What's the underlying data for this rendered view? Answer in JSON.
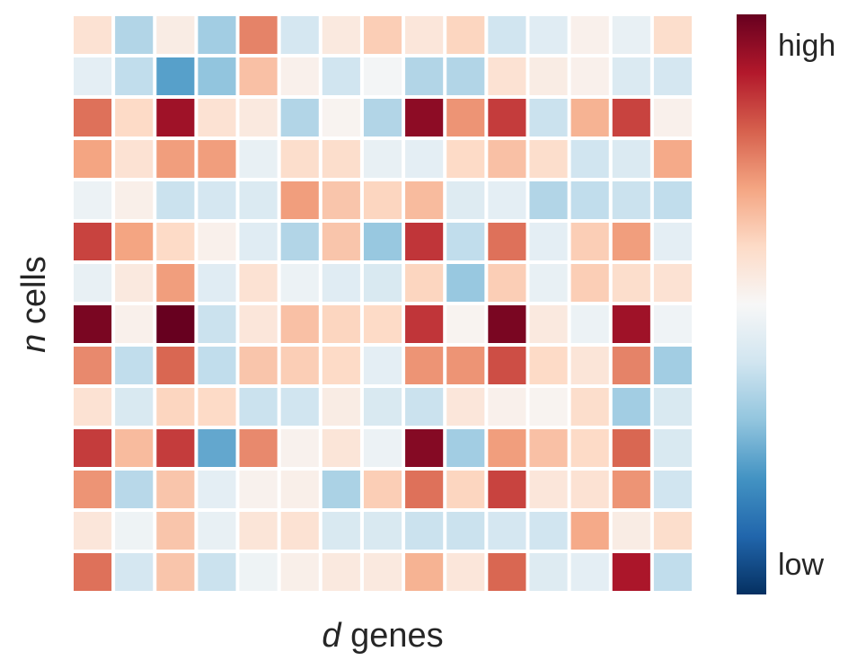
{
  "chart_data": {
    "type": "heatmap",
    "xlabel": {
      "italic": "d",
      "text": " genes"
    },
    "ylabel": {
      "italic": "n",
      "text": " cells"
    },
    "rows": 14,
    "cols": 15,
    "value_range": [
      -1,
      1
    ],
    "colorbar": {
      "high_label": "high",
      "low_label": "low"
    },
    "colormap": [
      "#053061",
      "#2166ac",
      "#4393c3",
      "#92c5de",
      "#d1e5f0",
      "#f7f7f7",
      "#fddbc7",
      "#f4a582",
      "#d6604d",
      "#b2182b",
      "#67001f"
    ],
    "grid": false,
    "values": [
      [
        0.15,
        -0.3,
        0.08,
        -0.35,
        0.5,
        -0.18,
        0.1,
        0.25,
        0.12,
        0.22,
        -0.2,
        -0.12,
        0.05,
        -0.08,
        0.18
      ],
      [
        -0.1,
        -0.25,
        -0.55,
        -0.4,
        0.3,
        0.05,
        -0.2,
        -0.02,
        -0.3,
        -0.3,
        0.15,
        0.08,
        0.05,
        -0.15,
        -0.18
      ],
      [
        0.55,
        0.2,
        0.85,
        0.15,
        0.1,
        -0.3,
        0.03,
        -0.3,
        0.9,
        0.45,
        0.7,
        -0.22,
        0.35,
        0.68,
        0.05
      ],
      [
        0.4,
        0.15,
        0.42,
        0.42,
        -0.08,
        0.18,
        0.18,
        -0.08,
        -0.1,
        0.2,
        0.3,
        0.18,
        -0.2,
        -0.15,
        0.38
      ],
      [
        -0.06,
        0.06,
        -0.22,
        -0.18,
        -0.15,
        0.42,
        0.28,
        0.22,
        0.32,
        -0.13,
        -0.1,
        -0.3,
        -0.25,
        -0.22,
        -0.25
      ],
      [
        0.68,
        0.4,
        0.2,
        0.05,
        -0.12,
        -0.3,
        0.28,
        -0.38,
        0.72,
        -0.25,
        0.55,
        -0.1,
        0.25,
        0.42,
        -0.1
      ],
      [
        -0.08,
        0.1,
        0.42,
        -0.12,
        0.15,
        -0.06,
        -0.12,
        -0.16,
        0.22,
        -0.38,
        0.25,
        -0.08,
        0.25,
        0.18,
        0.15
      ],
      [
        0.95,
        0.05,
        1.0,
        -0.22,
        0.12,
        0.3,
        0.22,
        0.2,
        0.72,
        0.03,
        0.95,
        0.1,
        -0.06,
        0.85,
        -0.04
      ],
      [
        0.48,
        -0.25,
        0.58,
        -0.25,
        0.28,
        0.25,
        0.2,
        -0.1,
        0.45,
        0.45,
        0.65,
        0.2,
        0.13,
        0.5,
        -0.35
      ],
      [
        0.15,
        -0.16,
        0.22,
        0.2,
        -0.22,
        -0.2,
        0.08,
        -0.16,
        -0.22,
        0.12,
        0.05,
        0.03,
        0.18,
        -0.35,
        -0.16
      ],
      [
        0.7,
        0.32,
        0.7,
        -0.52,
        0.48,
        0.04,
        0.13,
        -0.06,
        0.92,
        -0.35,
        0.42,
        0.3,
        0.2,
        0.58,
        -0.16
      ],
      [
        0.45,
        -0.28,
        0.28,
        -0.1,
        0.04,
        0.06,
        -0.32,
        0.25,
        0.55,
        0.22,
        0.68,
        0.12,
        0.15,
        0.45,
        -0.2
      ],
      [
        0.12,
        -0.05,
        0.28,
        -0.08,
        0.13,
        0.15,
        -0.16,
        -0.16,
        -0.22,
        -0.22,
        -0.18,
        -0.2,
        0.38,
        0.08,
        0.18
      ],
      [
        0.55,
        -0.18,
        0.28,
        -0.22,
        -0.05,
        0.06,
        0.1,
        0.1,
        0.35,
        0.12,
        0.58,
        -0.13,
        -0.1,
        0.82,
        -0.25
      ]
    ]
  }
}
